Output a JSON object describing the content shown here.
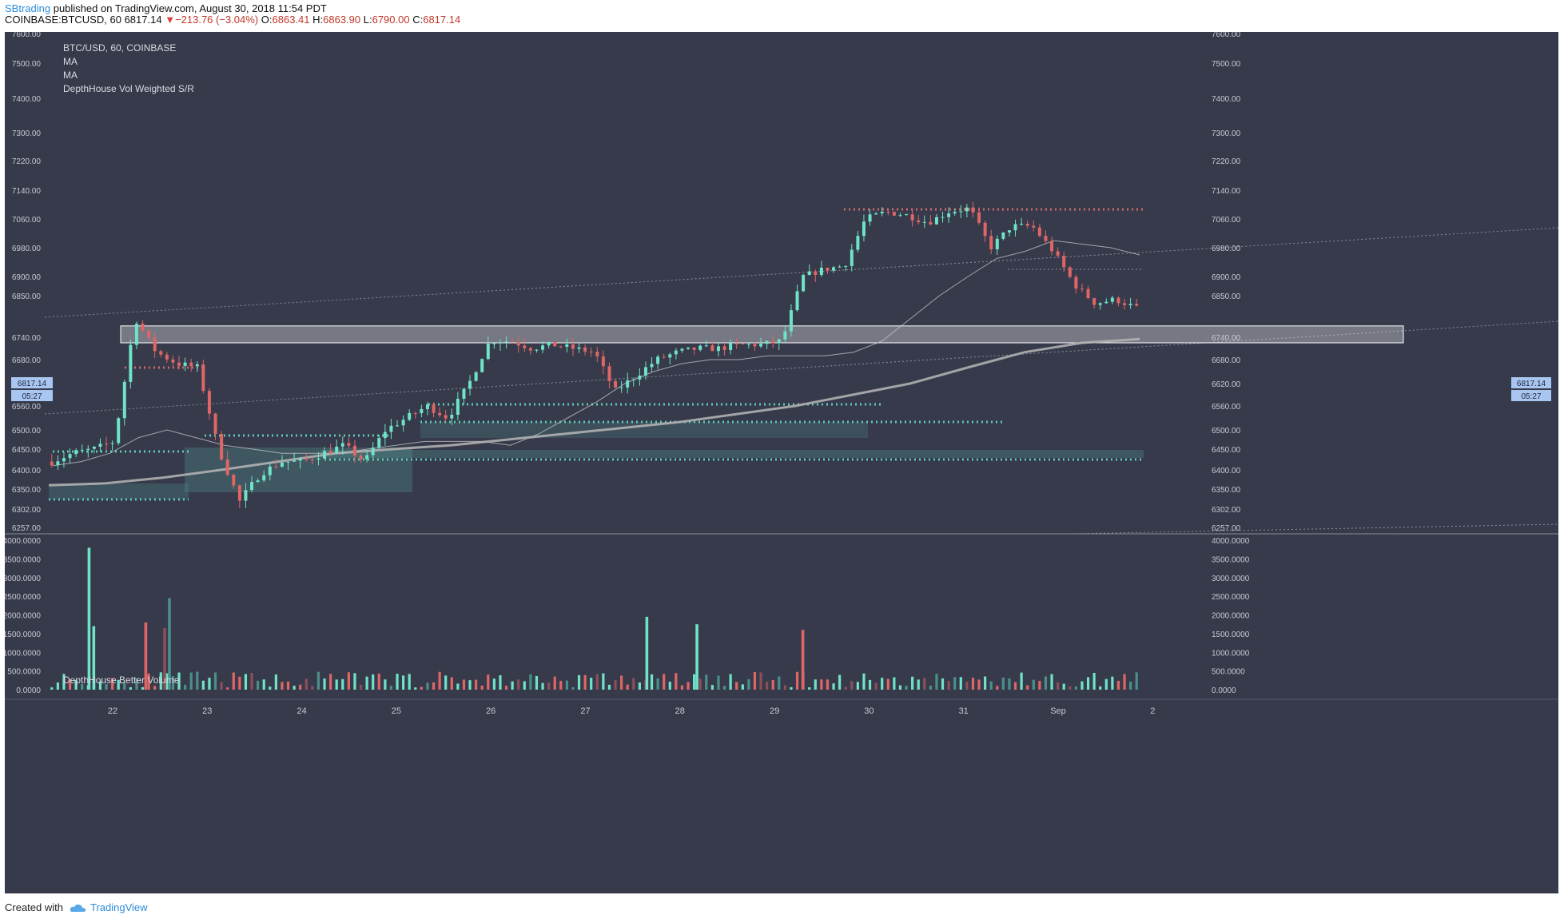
{
  "header": {
    "author": "SBtrading",
    "published": "published on TradingView.com, August 30, 2018 11:54 PDT",
    "symbol": "COINBASE:BTCUSD, 60",
    "last": "6817.14",
    "change": "−213.76 (−3.04%)",
    "o_label": "O:",
    "o_value": "6863.41",
    "h_label": "H:",
    "h_value": "6863.90",
    "l_label": "L:",
    "l_value": "6790.00",
    "c_label": "C:",
    "c_value": "6817.14"
  },
  "legend": {
    "main_title": "BTC/USD, 60, COINBASE",
    "ma1": "MA",
    "ma2": "MA",
    "sr": "DepthHouse Vol Weighted S/R",
    "volume_title": "DepthHouse Better Volume"
  },
  "price_badge": {
    "price": "6817.14",
    "countdown": "05:27"
  },
  "footer": {
    "created_with": "Created with",
    "brand": "TradingView"
  },
  "colors": {
    "background": "#363a4b",
    "up": "#6fe3c8",
    "down": "#e06666",
    "grid": "#4a4e5e",
    "axis_text": "#c8cad2",
    "ma_fast": "#c9c9c9",
    "ma_slow": "#b0b0b0",
    "support": "#5fc9b8",
    "resistance": "#c96a6a",
    "badge": "#a9c6f0"
  },
  "chart_data": {
    "type": "candlestick",
    "title": "BTC/USD, 60, COINBASE",
    "price_ticks": [
      "7600.00",
      "7500.00",
      "7400.00",
      "7300.00",
      "7220.00",
      "7140.00",
      "7060.00",
      "6980.00",
      "6900.00",
      "6850.00",
      "6740.00",
      "6680.00",
      "6620.00",
      "6560.00",
      "6500.00",
      "6450.00",
      "6400.00",
      "6350.00",
      "6302.00",
      "6257.00"
    ],
    "volume_ticks": [
      "4000.0000",
      "3500.0000",
      "3000.0000",
      "2500.0000",
      "2000.0000",
      "1500.0000",
      "1000.0000",
      "500.0000",
      "0.0000"
    ],
    "x_labels": [
      "22",
      "23",
      "24",
      "25",
      "26",
      "27",
      "28",
      "29",
      "30",
      "31",
      "Sep",
      "2"
    ],
    "price_anchors": [
      6420,
      6440,
      6450,
      6470,
      6790,
      6700,
      6670,
      6660,
      6450,
      6320,
      6390,
      6420,
      6420,
      6440,
      6460,
      6420,
      6500,
      6530,
      6560,
      6530,
      6620,
      6730,
      6730,
      6710,
      6720,
      6710,
      6700,
      6600,
      6640,
      6680,
      6700,
      6710,
      6710,
      6720,
      6720,
      6730,
      6900,
      6920,
      6930,
      7060,
      7080,
      7070,
      7050,
      7080,
      7090,
      6980,
      7040,
      7040,
      6970,
      6880,
      6830,
      6840,
      6817
    ],
    "volume_spikes": [
      {
        "x_day": 21.75,
        "value": 3800
      },
      {
        "x_day": 21.8,
        "value": 1700
      },
      {
        "x_day": 22.35,
        "value": 1800
      },
      {
        "x_day": 22.6,
        "value": 2450
      },
      {
        "x_day": 22.55,
        "value": 1650
      },
      {
        "x_day": 27.65,
        "value": 1950
      },
      {
        "x_day": 28.18,
        "value": 1750
      },
      {
        "x_day": 29.3,
        "value": 1600
      }
    ],
    "moving_averages": [
      {
        "name": "MA",
        "values": [
          6410,
          6420,
          6440,
          6480,
          6500,
          6480,
          6460,
          6450,
          6440,
          6440,
          6440,
          6450,
          6460,
          6470,
          6470,
          6470,
          6460,
          6490,
          6530,
          6570,
          6620,
          6650,
          6670,
          6680,
          6680,
          6690,
          6690,
          6690,
          6700,
          6730,
          6790,
          6850,
          6900,
          6950,
          6970,
          7000,
          6990,
          6980,
          6960
        ]
      },
      {
        "name": "MA",
        "values": [
          6360,
          6365,
          6380,
          6400,
          6420,
          6440,
          6450,
          6460,
          6475,
          6490,
          6505,
          6520,
          6540,
          6560,
          6590,
          6620,
          6660,
          6700,
          6725,
          6735
        ]
      }
    ],
    "sr_zone": {
      "low": 6725,
      "high": 6770
    },
    "support_levels": [
      6310,
      6420,
      6440,
      6510,
      6560
    ],
    "resistance_levels": [
      6660,
      7080
    ],
    "last_price": 6817.14
  }
}
